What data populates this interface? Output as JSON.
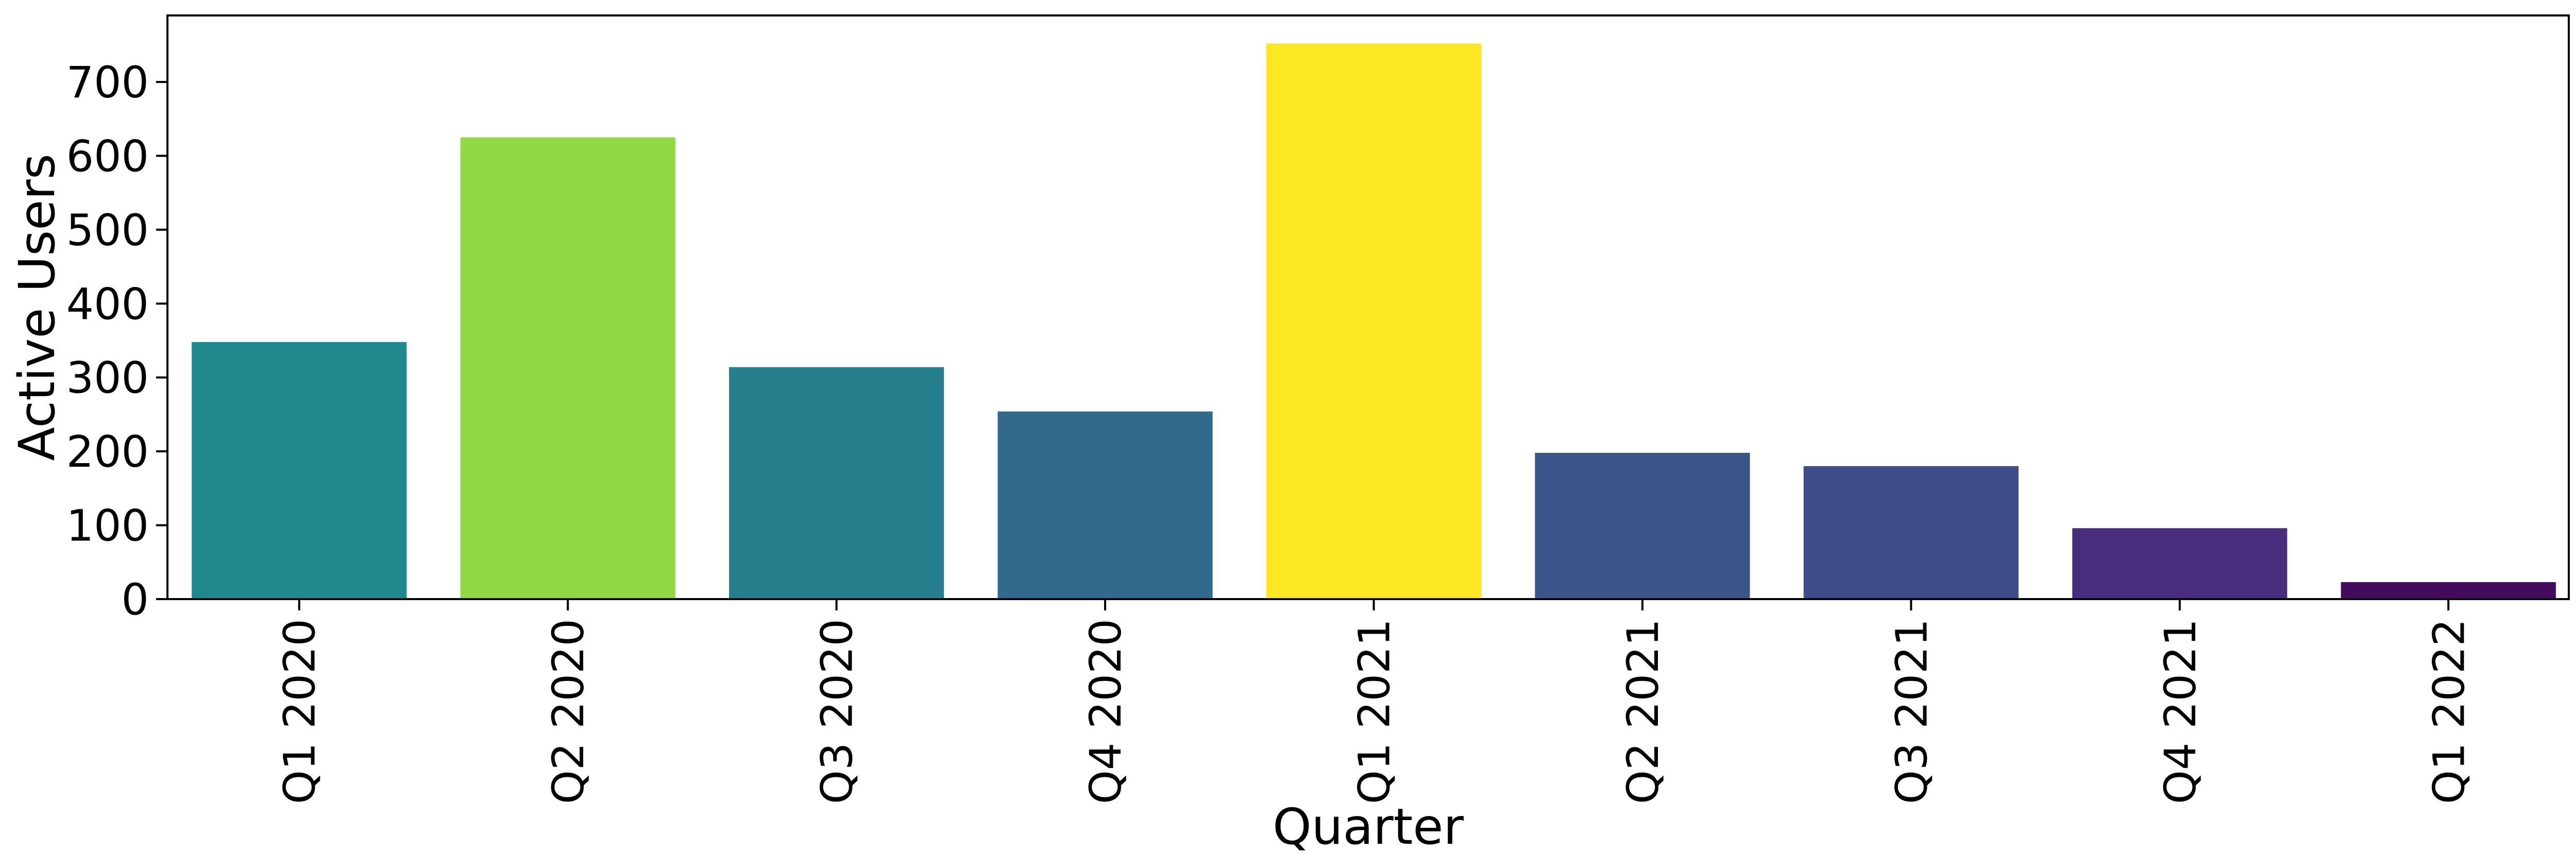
{
  "chart_data": {
    "type": "bar",
    "title": "",
    "xlabel": "Quarter",
    "ylabel": "Active Users",
    "categories": [
      "Q1 2020",
      "Q2 2020",
      "Q3 2020",
      "Q4 2020",
      "Q1 2021",
      "Q2 2021",
      "Q3 2021",
      "Q4 2021",
      "Q1 2022"
    ],
    "values": [
      348,
      625,
      314,
      254,
      752,
      198,
      180,
      96,
      23
    ],
    "colors": [
      "#21888d",
      "#91d845",
      "#277f8e",
      "#316a8d",
      "#fde724",
      "#3b548a",
      "#3e4c8a",
      "#472d7b",
      "#440a5e"
    ],
    "ylim": [
      0,
      790
    ],
    "yticks": [
      0,
      100,
      200,
      300,
      400,
      500,
      600,
      700
    ],
    "grid": false,
    "legend": false
  }
}
